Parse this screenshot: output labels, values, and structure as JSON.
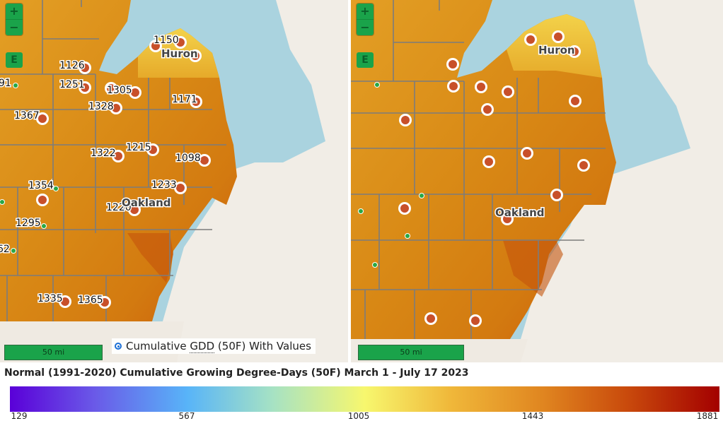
{
  "left_panel": {
    "zoom_in_label": "+",
    "zoom_out_label": "−",
    "layer_button_label": "E",
    "scale_label": "50 mi",
    "place_labels": [
      {
        "text": "Huron",
        "cls": "place-big"
      },
      {
        "text": "Oakland",
        "cls": "place-big"
      }
    ],
    "station_values": [
      "1150",
      "1126",
      "1251",
      "1305",
      "1328",
      "1171",
      "1367",
      "1322",
      "1215",
      "1098",
      "1354",
      "1233",
      "1220",
      "1295",
      "1335",
      "1365"
    ],
    "edge_values": [
      "91",
      "62"
    ],
    "layer_toggle_prefix": "Cumulative",
    "layer_toggle_abbr": "GDD",
    "layer_toggle_suffix": "(50F) With Values"
  },
  "right_panel": {
    "zoom_in_label": "+",
    "zoom_out_label": "−",
    "layer_button_label": "E",
    "scale_label": "50 mi",
    "place_labels": [
      "Huron",
      "Oakland"
    ]
  },
  "legend": {
    "title": "Normal (1991-2020) Cumulative Growing Degree-Days (50F) March 1 - July 17 2023",
    "ticks": [
      "129",
      "567",
      "1005",
      "1443",
      "1881"
    ],
    "colors": {
      "min": "#5a00d8",
      "mid": "#f7f76e",
      "max": "#a30000"
    }
  },
  "colors": {
    "water": "#aad3df",
    "land": "#f1ede6",
    "station_fill": "#c8502a",
    "small_station": "#28a745",
    "accent": "#1aa34a"
  }
}
